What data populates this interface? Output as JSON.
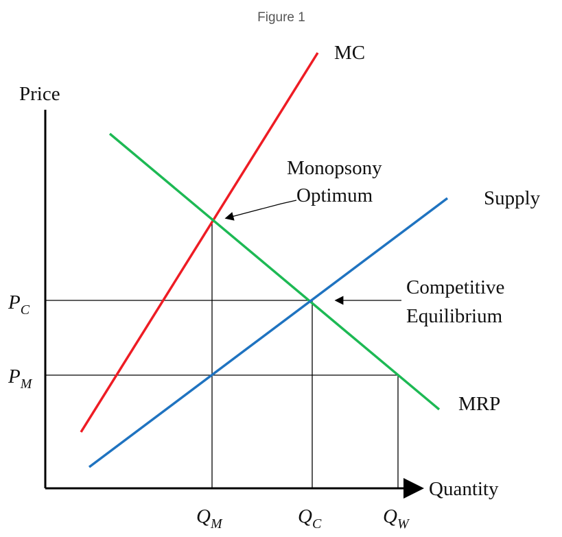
{
  "title": "Figure 1",
  "axes": {
    "y_label": "Price",
    "x_label": "Quantity"
  },
  "curves": {
    "mc": "MC",
    "mrp": "MRP",
    "supply": "Supply"
  },
  "annotations": {
    "monopsony": [
      "Monopsony",
      "Optimum"
    ],
    "competitive": [
      "Competitive",
      "Equilibrium"
    ]
  },
  "price_labels": [
    {
      "symbol": "P",
      "subscript": "C"
    },
    {
      "symbol": "P",
      "subscript": "M"
    }
  ],
  "quantity_labels": [
    {
      "symbol": "Q",
      "subscript": "M"
    },
    {
      "symbol": "Q",
      "subscript": "C"
    },
    {
      "symbol": "Q",
      "subscript": "W"
    }
  ]
}
